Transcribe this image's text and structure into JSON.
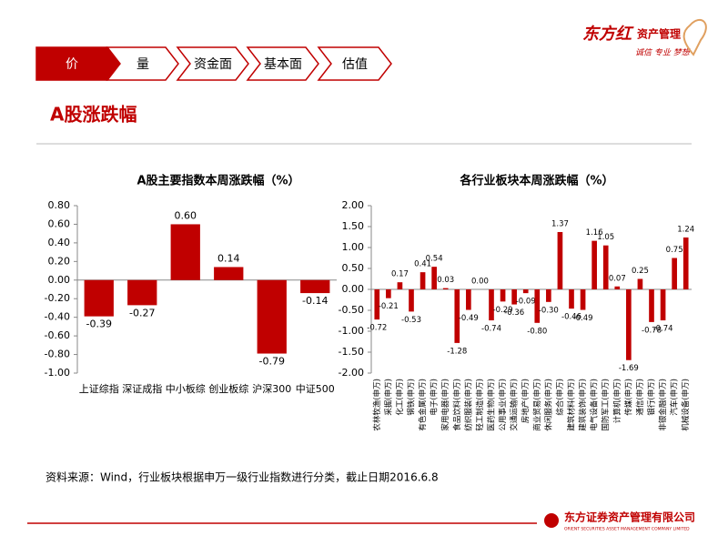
{
  "tabs": [
    "价",
    "量",
    "资金面",
    "基本面",
    "估值"
  ],
  "logo": {
    "brand": "东方红",
    "name": "资产管理",
    "slogan": "诚信 专业 梦想"
  },
  "heading": "A股涨跌幅",
  "source": "资料来源：Wind，行业板块根据申万一级行业指数进行分类，截止日期2016.6.8",
  "footer": {
    "company": "东方证券资产管理有限公司",
    "company_en": "ORIENT SECURITIES ASSET MANAGEMENT COMPANY LIMITED"
  },
  "chart_data": [
    {
      "type": "bar",
      "title": "A股主要指数本周涨跌幅（%）",
      "color": "#c00000",
      "categories": [
        "上证综指",
        "深证成指",
        "中小板综",
        "创业板综",
        "沪深300",
        "中证500"
      ],
      "values": [
        -0.39,
        -0.27,
        0.6,
        0.14,
        -0.79,
        -0.14
      ],
      "value_labels": [
        "-0.39",
        "-0.27",
        "0.60",
        "0.14",
        "-0.79",
        "-0.14"
      ],
      "ylim": [
        -1,
        0.8
      ],
      "yticks": [
        {
          "value": -1,
          "label": "-1.00"
        },
        {
          "value": -0.8,
          "label": "-0.80"
        },
        {
          "value": -0.6,
          "label": "-0.60"
        },
        {
          "value": -0.4,
          "label": "-0.40"
        },
        {
          "value": -0.2,
          "label": "-0.20"
        },
        {
          "value": 0,
          "label": "0.00"
        },
        {
          "value": 0.2,
          "label": "0.20"
        },
        {
          "value": 0.4,
          "label": "0.40"
        },
        {
          "value": 0.6,
          "label": "0.60"
        },
        {
          "value": 0.8,
          "label": "0.80"
        }
      ]
    },
    {
      "type": "bar",
      "title": "各行业板块本周涨跌幅（%）",
      "color": "#c00000",
      "categories": [
        "农林牧渔(申万)",
        "采掘(申万)",
        "化工(申万)",
        "钢铁(申万)",
        "有色金属(申万)",
        "电子(申万)",
        "家用电器(申万)",
        "食品饮料(申万)",
        "纺织服装(申万)",
        "轻工制造(申万)",
        "医药生物(申万)",
        "公用事业(申万)",
        "交通运输(申万)",
        "房地产(申万)",
        "商业贸易(申万)",
        "休闲服务(申万)",
        "综合(申万)",
        "建筑材料(申万)",
        "建筑装饰(申万)",
        "电气设备(申万)",
        "国防军工(申万)",
        "计算机(申万)",
        "传媒(申万)",
        "通信(申万)",
        "银行(申万)",
        "非银金融(申万)",
        "汽车(申万)",
        "机械设备(申万)"
      ],
      "values": [
        -0.72,
        -0.21,
        0.17,
        -0.53,
        0.41,
        0.54,
        0.03,
        -1.28,
        -0.49,
        0,
        -0.74,
        -0.29,
        -0.36,
        -0.09,
        -0.8,
        -0.3,
        1.37,
        -0.46,
        -0.49,
        1.16,
        1.05,
        0.07,
        -1.69,
        0.25,
        -0.78,
        -0.74,
        0.75,
        1.24
      ],
      "value_labels": [
        "-0.72",
        "-0.21",
        "0.17",
        "-0.53",
        "0.41",
        "0.54",
        "0.03",
        "-1.28",
        "-0.49",
        "0.00",
        "-0.74",
        "-0.29",
        "-0.36",
        "-0.09",
        "-0.80",
        "-0.30",
        "1.37",
        "-0.46",
        "-0.49",
        "1.16",
        "1.05",
        "0.07",
        "-1.69",
        "0.25",
        "-0.78",
        "-0.74",
        "0.75",
        "1.24"
      ],
      "ylim": [
        -2,
        2
      ],
      "yticks": [
        {
          "value": -2,
          "label": "-2.00"
        },
        {
          "value": -1.5,
          "label": "-1.50"
        },
        {
          "value": -1,
          "label": "-1.00"
        },
        {
          "value": -0.5,
          "label": "-0.50"
        },
        {
          "value": 0,
          "label": "0.00"
        },
        {
          "value": 0.5,
          "label": "0.50"
        },
        {
          "value": 1,
          "label": "1.00"
        },
        {
          "value": 1.5,
          "label": "1.50"
        },
        {
          "value": 2,
          "label": "2.00"
        }
      ]
    }
  ]
}
